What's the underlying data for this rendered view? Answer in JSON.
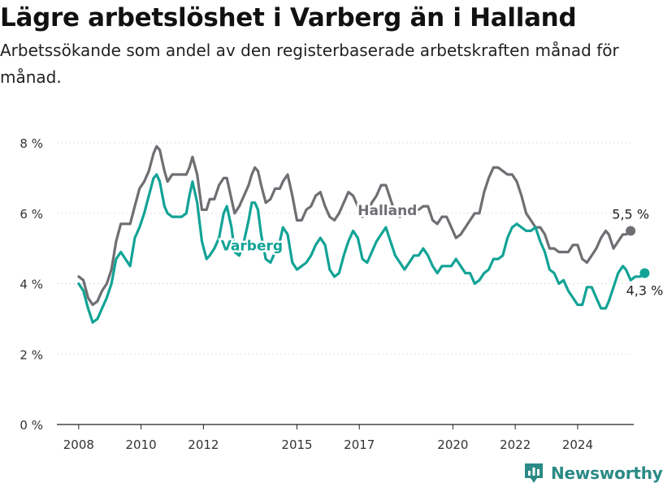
{
  "title": "Lägre arbetslöshet i Varberg än i Halland",
  "subtitle": "Arbetssökande som andel av den registerbaserade arbetskraften månad för månad.",
  "brand": {
    "name": "Newsworthy",
    "icon": "newsworthy-logo-icon"
  },
  "colors": {
    "halland": "#6f6e73",
    "varberg": "#12a396",
    "grid": "#dddddd"
  },
  "chart_data": {
    "type": "line",
    "title": "Lägre arbetslöshet i Varberg än i Halland",
    "ylabel": "",
    "xlabel": "",
    "ylim": [
      0,
      8
    ],
    "xlim": [
      2007.3,
      2025.8
    ],
    "grid": true,
    "y_ticks": [
      {
        "value": 0,
        "label": "0 %"
      },
      {
        "value": 2,
        "label": "2 %"
      },
      {
        "value": 4,
        "label": "4 %"
      },
      {
        "value": 6,
        "label": "6 %"
      },
      {
        "value": 8,
        "label": "8 %"
      }
    ],
    "x_ticks": [
      {
        "value": 2008,
        "label": "2008"
      },
      {
        "value": 2010,
        "label": "2010"
      },
      {
        "value": 2012,
        "label": "2012"
      },
      {
        "value": 2015,
        "label": "2015"
      },
      {
        "value": 2017,
        "label": "2017"
      },
      {
        "value": 2020,
        "label": "2020"
      },
      {
        "value": 2022,
        "label": "2022"
      },
      {
        "value": 2024,
        "label": "2024"
      }
    ],
    "series": [
      {
        "name": "Halland",
        "color": "#6f6e73",
        "label_x": 2017.9,
        "label_y": 5.95,
        "end_label": "5,5 %",
        "points": [
          [
            2008.0,
            4.2
          ],
          [
            2008.15,
            4.1
          ],
          [
            2008.3,
            3.6
          ],
          [
            2008.45,
            3.4
          ],
          [
            2008.6,
            3.5
          ],
          [
            2008.75,
            3.8
          ],
          [
            2008.9,
            4.0
          ],
          [
            2009.05,
            4.4
          ],
          [
            2009.2,
            5.2
          ],
          [
            2009.35,
            5.7
          ],
          [
            2009.5,
            5.7
          ],
          [
            2009.65,
            5.7
          ],
          [
            2009.8,
            6.2
          ],
          [
            2009.95,
            6.7
          ],
          [
            2010.1,
            6.9
          ],
          [
            2010.25,
            7.2
          ],
          [
            2010.4,
            7.7
          ],
          [
            2010.5,
            7.9
          ],
          [
            2010.6,
            7.8
          ],
          [
            2010.75,
            7.2
          ],
          [
            2010.85,
            6.9
          ],
          [
            2011.0,
            7.1
          ],
          [
            2011.15,
            7.1
          ],
          [
            2011.3,
            7.1
          ],
          [
            2011.45,
            7.1
          ],
          [
            2011.55,
            7.3
          ],
          [
            2011.65,
            7.6
          ],
          [
            2011.8,
            7.1
          ],
          [
            2011.95,
            6.1
          ],
          [
            2012.1,
            6.1
          ],
          [
            2012.2,
            6.4
          ],
          [
            2012.35,
            6.4
          ],
          [
            2012.5,
            6.8
          ],
          [
            2012.65,
            7.0
          ],
          [
            2012.75,
            7.0
          ],
          [
            2012.9,
            6.4
          ],
          [
            2013.0,
            6.0
          ],
          [
            2013.15,
            6.2
          ],
          [
            2013.3,
            6.5
          ],
          [
            2013.45,
            6.8
          ],
          [
            2013.55,
            7.1
          ],
          [
            2013.65,
            7.3
          ],
          [
            2013.75,
            7.2
          ],
          [
            2013.85,
            6.8
          ],
          [
            2014.0,
            6.3
          ],
          [
            2014.15,
            6.4
          ],
          [
            2014.3,
            6.7
          ],
          [
            2014.45,
            6.7
          ],
          [
            2014.55,
            6.9
          ],
          [
            2014.7,
            7.1
          ],
          [
            2014.85,
            6.5
          ],
          [
            2015.0,
            5.8
          ],
          [
            2015.15,
            5.8
          ],
          [
            2015.3,
            6.1
          ],
          [
            2015.45,
            6.2
          ],
          [
            2015.6,
            6.5
          ],
          [
            2015.75,
            6.6
          ],
          [
            2015.9,
            6.2
          ],
          [
            2016.05,
            5.9
          ],
          [
            2016.2,
            5.8
          ],
          [
            2016.35,
            6.0
          ],
          [
            2016.5,
            6.3
          ],
          [
            2016.65,
            6.6
          ],
          [
            2016.8,
            6.5
          ],
          [
            2016.95,
            6.2
          ],
          [
            2017.1,
            5.9
          ],
          [
            2017.25,
            6.0
          ],
          [
            2017.4,
            6.3
          ],
          [
            2017.55,
            6.5
          ],
          [
            2017.7,
            6.8
          ],
          [
            2017.85,
            6.8
          ],
          [
            2018.0,
            6.4
          ],
          [
            2018.15,
            6.0
          ],
          [
            2018.3,
            5.9
          ],
          [
            2018.45,
            6.0
          ],
          [
            2018.6,
            6.1
          ],
          [
            2018.75,
            6.1
          ],
          [
            2018.9,
            6.1
          ],
          [
            2019.05,
            6.2
          ],
          [
            2019.2,
            6.2
          ],
          [
            2019.35,
            5.8
          ],
          [
            2019.5,
            5.7
          ],
          [
            2019.65,
            5.9
          ],
          [
            2019.8,
            5.9
          ],
          [
            2019.95,
            5.6
          ],
          [
            2020.1,
            5.3
          ],
          [
            2020.25,
            5.4
          ],
          [
            2020.4,
            5.6
          ],
          [
            2020.55,
            5.8
          ],
          [
            2020.7,
            6.0
          ],
          [
            2020.85,
            6.0
          ],
          [
            2021.0,
            6.6
          ],
          [
            2021.15,
            7.0
          ],
          [
            2021.3,
            7.3
          ],
          [
            2021.45,
            7.3
          ],
          [
            2021.6,
            7.2
          ],
          [
            2021.75,
            7.1
          ],
          [
            2021.9,
            7.1
          ],
          [
            2022.05,
            6.9
          ],
          [
            2022.2,
            6.5
          ],
          [
            2022.35,
            6.0
          ],
          [
            2022.5,
            5.8
          ],
          [
            2022.65,
            5.6
          ],
          [
            2022.8,
            5.6
          ],
          [
            2022.95,
            5.4
          ],
          [
            2023.1,
            5.0
          ],
          [
            2023.25,
            5.0
          ],
          [
            2023.4,
            4.9
          ],
          [
            2023.55,
            4.9
          ],
          [
            2023.7,
            4.9
          ],
          [
            2023.85,
            5.1
          ],
          [
            2024.0,
            5.1
          ],
          [
            2024.15,
            4.7
          ],
          [
            2024.3,
            4.6
          ],
          [
            2024.45,
            4.8
          ],
          [
            2024.6,
            5.0
          ],
          [
            2024.75,
            5.3
          ],
          [
            2024.9,
            5.5
          ],
          [
            2025.0,
            5.4
          ],
          [
            2025.15,
            5.0
          ],
          [
            2025.3,
            5.2
          ],
          [
            2025.45,
            5.4
          ],
          [
            2025.55,
            5.4
          ],
          [
            2025.7,
            5.5
          ]
        ]
      },
      {
        "name": "Varberg",
        "color": "#12a396",
        "label_x": 2013.55,
        "label_y": 4.95,
        "end_label": "4,3 %",
        "points": [
          [
            2008.0,
            4.0
          ],
          [
            2008.15,
            3.8
          ],
          [
            2008.3,
            3.3
          ],
          [
            2008.45,
            2.9
          ],
          [
            2008.6,
            3.0
          ],
          [
            2008.75,
            3.3
          ],
          [
            2008.9,
            3.6
          ],
          [
            2009.05,
            4.0
          ],
          [
            2009.2,
            4.7
          ],
          [
            2009.35,
            4.9
          ],
          [
            2009.5,
            4.7
          ],
          [
            2009.65,
            4.5
          ],
          [
            2009.8,
            5.3
          ],
          [
            2009.95,
            5.6
          ],
          [
            2010.1,
            6.0
          ],
          [
            2010.25,
            6.5
          ],
          [
            2010.4,
            7.0
          ],
          [
            2010.5,
            7.1
          ],
          [
            2010.6,
            6.9
          ],
          [
            2010.75,
            6.2
          ],
          [
            2010.85,
            6.0
          ],
          [
            2011.0,
            5.9
          ],
          [
            2011.15,
            5.9
          ],
          [
            2011.3,
            5.9
          ],
          [
            2011.45,
            6.0
          ],
          [
            2011.55,
            6.5
          ],
          [
            2011.65,
            6.9
          ],
          [
            2011.8,
            6.3
          ],
          [
            2011.95,
            5.2
          ],
          [
            2012.1,
            4.7
          ],
          [
            2012.2,
            4.8
          ],
          [
            2012.35,
            5.0
          ],
          [
            2012.5,
            5.3
          ],
          [
            2012.65,
            6.0
          ],
          [
            2012.75,
            6.2
          ],
          [
            2012.9,
            5.6
          ],
          [
            2013.0,
            4.9
          ],
          [
            2013.15,
            4.8
          ],
          [
            2013.3,
            5.2
          ],
          [
            2013.45,
            5.8
          ],
          [
            2013.55,
            6.3
          ],
          [
            2013.65,
            6.3
          ],
          [
            2013.75,
            6.1
          ],
          [
            2013.85,
            5.4
          ],
          [
            2014.0,
            4.7
          ],
          [
            2014.15,
            4.6
          ],
          [
            2014.3,
            4.9
          ],
          [
            2014.45,
            5.2
          ],
          [
            2014.55,
            5.6
          ],
          [
            2014.7,
            5.4
          ],
          [
            2014.85,
            4.6
          ],
          [
            2015.0,
            4.4
          ],
          [
            2015.15,
            4.5
          ],
          [
            2015.3,
            4.6
          ],
          [
            2015.45,
            4.8
          ],
          [
            2015.6,
            5.1
          ],
          [
            2015.75,
            5.3
          ],
          [
            2015.9,
            5.1
          ],
          [
            2016.05,
            4.4
          ],
          [
            2016.2,
            4.2
          ],
          [
            2016.35,
            4.3
          ],
          [
            2016.5,
            4.8
          ],
          [
            2016.65,
            5.2
          ],
          [
            2016.8,
            5.5
          ],
          [
            2016.95,
            5.3
          ],
          [
            2017.1,
            4.7
          ],
          [
            2017.25,
            4.6
          ],
          [
            2017.4,
            4.9
          ],
          [
            2017.55,
            5.2
          ],
          [
            2017.7,
            5.4
          ],
          [
            2017.85,
            5.6
          ],
          [
            2018.0,
            5.2
          ],
          [
            2018.15,
            4.8
          ],
          [
            2018.3,
            4.6
          ],
          [
            2018.45,
            4.4
          ],
          [
            2018.6,
            4.6
          ],
          [
            2018.75,
            4.8
          ],
          [
            2018.9,
            4.8
          ],
          [
            2019.05,
            5.0
          ],
          [
            2019.2,
            4.8
          ],
          [
            2019.35,
            4.5
          ],
          [
            2019.5,
            4.3
          ],
          [
            2019.65,
            4.5
          ],
          [
            2019.8,
            4.5
          ],
          [
            2019.95,
            4.5
          ],
          [
            2020.1,
            4.7
          ],
          [
            2020.25,
            4.5
          ],
          [
            2020.4,
            4.3
          ],
          [
            2020.55,
            4.3
          ],
          [
            2020.7,
            4.0
          ],
          [
            2020.85,
            4.1
          ],
          [
            2021.0,
            4.3
          ],
          [
            2021.15,
            4.4
          ],
          [
            2021.3,
            4.7
          ],
          [
            2021.45,
            4.7
          ],
          [
            2021.6,
            4.8
          ],
          [
            2021.75,
            5.3
          ],
          [
            2021.9,
            5.6
          ],
          [
            2022.05,
            5.7
          ],
          [
            2022.2,
            5.6
          ],
          [
            2022.35,
            5.5
          ],
          [
            2022.5,
            5.5
          ],
          [
            2022.65,
            5.6
          ],
          [
            2022.8,
            5.2
          ],
          [
            2022.95,
            4.9
          ],
          [
            2023.1,
            4.4
          ],
          [
            2023.25,
            4.3
          ],
          [
            2023.4,
            4.0
          ],
          [
            2023.55,
            4.1
          ],
          [
            2023.7,
            3.8
          ],
          [
            2023.85,
            3.6
          ],
          [
            2024.0,
            3.4
          ],
          [
            2024.15,
            3.4
          ],
          [
            2024.3,
            3.9
          ],
          [
            2024.45,
            3.9
          ],
          [
            2024.6,
            3.6
          ],
          [
            2024.75,
            3.3
          ],
          [
            2024.9,
            3.3
          ],
          [
            2025.0,
            3.5
          ],
          [
            2025.15,
            3.9
          ],
          [
            2025.3,
            4.3
          ],
          [
            2025.45,
            4.5
          ],
          [
            2025.55,
            4.4
          ],
          [
            2025.7,
            4.1
          ],
          [
            2025.85,
            4.2
          ],
          [
            2026.0,
            4.2
          ],
          [
            2026.15,
            4.3
          ]
        ]
      }
    ]
  }
}
